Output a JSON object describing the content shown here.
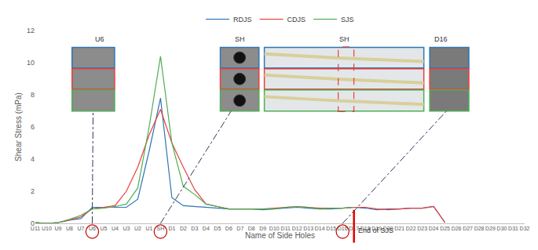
{
  "chart_data": {
    "type": "line",
    "x_label": "Name of Side Holes",
    "y_label": "Shear Stress (mPa)",
    "categories": [
      "U11",
      "U10",
      "U9",
      "U8",
      "U7",
      "U6",
      "U5",
      "U4",
      "U3",
      "U2",
      "U1",
      "SH",
      "D1",
      "D2",
      "D3",
      "D4",
      "D5",
      "D6",
      "D7",
      "D8",
      "D9",
      "D10",
      "D11",
      "D12",
      "D13",
      "D14",
      "D15",
      "D16",
      "D17",
      "D18",
      "D19",
      "D20",
      "D21",
      "D22",
      "D23",
      "D24",
      "D25",
      "D26",
      "D27",
      "D28",
      "D29",
      "D30",
      "D31",
      "D32"
    ],
    "series": [
      {
        "name": "RDJS",
        "color": "#2e75b6",
        "values": [
          0.05,
          0.0,
          0.05,
          0.2,
          0.3,
          1.0,
          1.0,
          1.0,
          1.0,
          1.5,
          4.5,
          7.8,
          1.6,
          1.1,
          1.05,
          1.0,
          0.95,
          0.9,
          0.9,
          0.9,
          0.85,
          0.9,
          0.95,
          1.0,
          0.95,
          0.9,
          0.9,
          0.95,
          1.0,
          0.95,
          0.85,
          0.9,
          0.9,
          0.95,
          0.95,
          1.05,
          0.05,
          null,
          null,
          null,
          null,
          null,
          null,
          null
        ]
      },
      {
        "name": "CDJS",
        "color": "#e8403c",
        "values": [
          0.05,
          0.0,
          0.05,
          0.2,
          0.4,
          0.9,
          1.0,
          1.1,
          2.0,
          3.5,
          5.5,
          7.1,
          5.0,
          3.5,
          2.1,
          1.2,
          1.05,
          0.9,
          0.9,
          0.9,
          0.9,
          0.95,
          1.0,
          1.05,
          1.0,
          0.95,
          0.95,
          0.95,
          1.0,
          1.0,
          0.9,
          0.85,
          0.9,
          0.95,
          0.95,
          1.05,
          0.05,
          null,
          null,
          null,
          null,
          null,
          null,
          null
        ]
      },
      {
        "name": "SJS",
        "color": "#4caf50",
        "values": [
          0.05,
          0.0,
          0.05,
          0.25,
          0.5,
          0.9,
          0.95,
          1.05,
          1.2,
          2.2,
          6.0,
          10.4,
          5.0,
          2.3,
          1.8,
          1.2,
          1.05,
          0.9,
          0.9,
          0.9,
          0.9,
          0.9,
          1.0,
          1.05,
          1.0,
          0.9,
          0.95,
          0.95,
          1.0,
          null,
          null,
          null,
          null,
          null,
          null,
          null,
          null,
          null,
          null,
          null,
          null,
          null,
          null,
          null
        ]
      }
    ],
    "ylim": [
      0,
      12
    ],
    "yticks": [
      0,
      2,
      4,
      6,
      8,
      10,
      12
    ],
    "grid": false,
    "legend": "top",
    "image_labels": [
      "U6",
      "SH",
      "SH",
      "D16"
    ],
    "highlighted": [
      "U6",
      "SH",
      "D16"
    ],
    "end_marker": {
      "text": "End of SJS",
      "category": "D17"
    }
  }
}
